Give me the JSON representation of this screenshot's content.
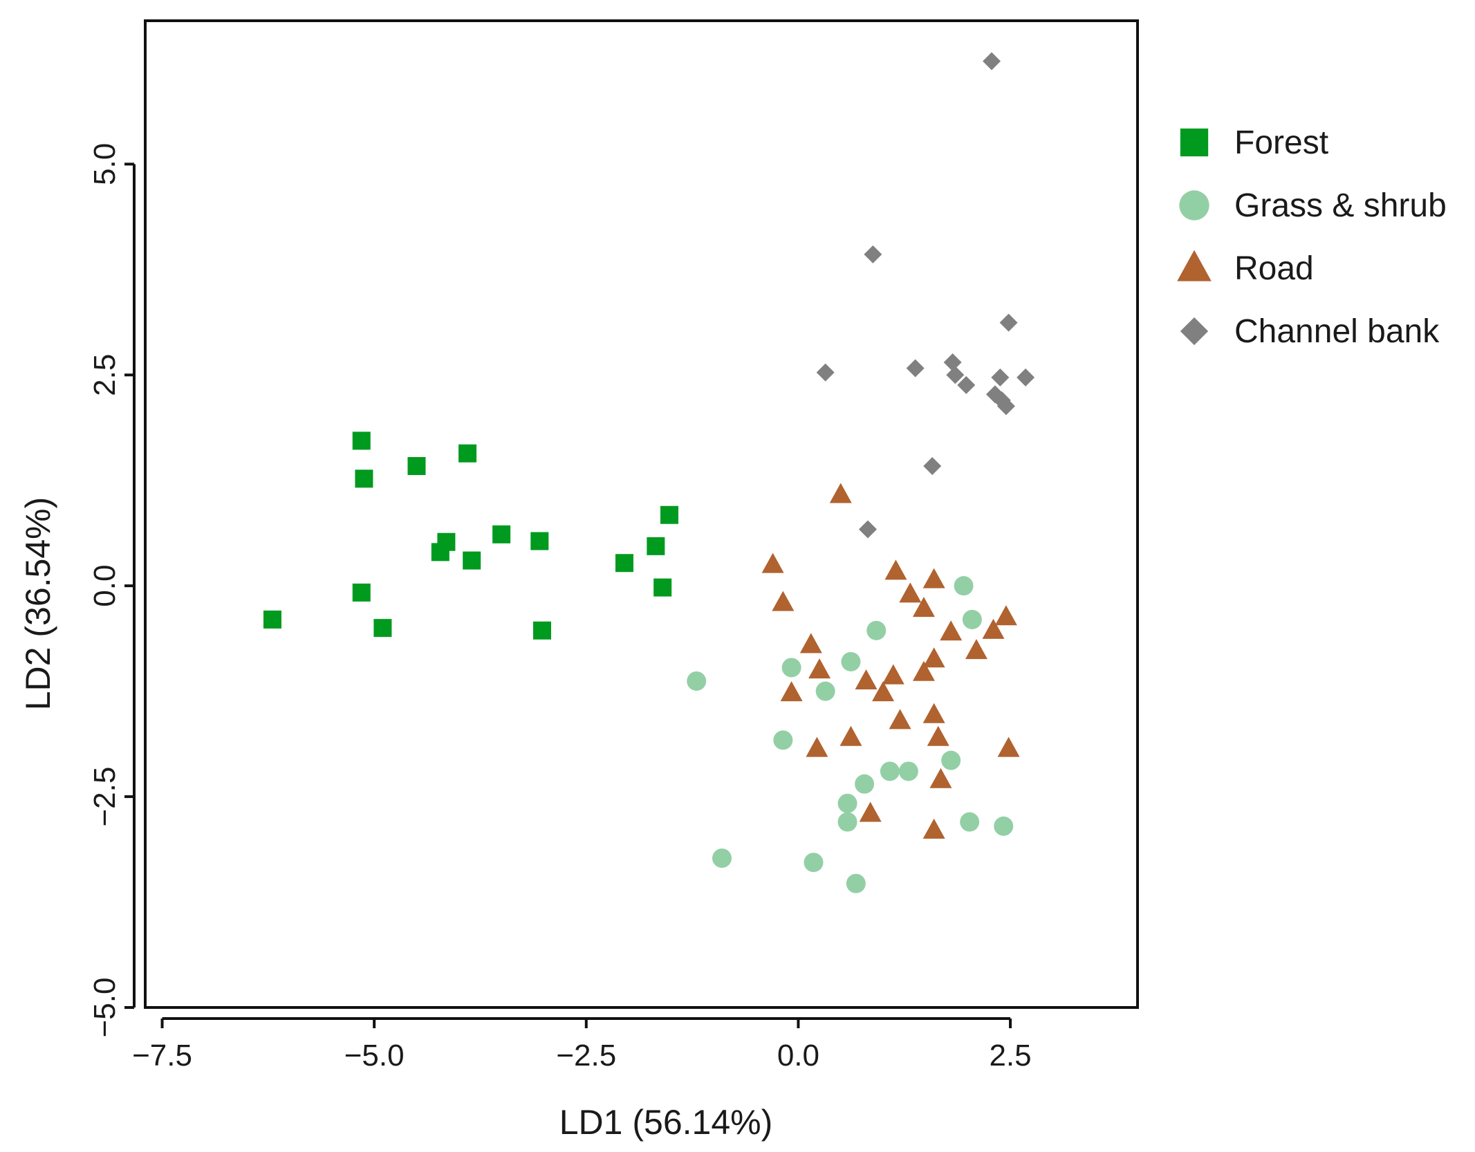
{
  "chart_data": {
    "type": "scatter",
    "title": "",
    "xlabel": "LD1 (56.14%)",
    "ylabel": "LD2 (36.54%)",
    "xlim": [
      -7.7,
      4.0
    ],
    "ylim": [
      -5.0,
      6.7
    ],
    "xticks": [
      -7.5,
      -5.0,
      -2.5,
      0.0,
      2.5
    ],
    "xtick_labels": [
      "−7.5",
      "−5.0",
      "−2.5",
      "0.0",
      "2.5"
    ],
    "yticks": [
      -5.0,
      -2.5,
      0.0,
      2.5,
      5.0
    ],
    "ytick_labels": [
      "−5.0",
      "−2.5",
      "0.0",
      "2.5",
      "5.0"
    ],
    "grid": false,
    "legend_position": "outside-right",
    "series": [
      {
        "name": "Forest",
        "marker": "square",
        "color": "#009a1f",
        "points": [
          [
            -6.2,
            -0.4
          ],
          [
            -5.15,
            1.72
          ],
          [
            -5.12,
            1.27
          ],
          [
            -5.15,
            -0.08
          ],
          [
            -4.9,
            -0.5
          ],
          [
            -4.5,
            1.42
          ],
          [
            -4.22,
            0.4
          ],
          [
            -4.15,
            0.52
          ],
          [
            -3.9,
            1.57
          ],
          [
            -3.85,
            0.3
          ],
          [
            -3.5,
            0.61
          ],
          [
            -3.05,
            0.53
          ],
          [
            -3.02,
            -0.53
          ],
          [
            -2.05,
            0.27
          ],
          [
            -1.68,
            0.47
          ],
          [
            -1.6,
            -0.02
          ],
          [
            -1.52,
            0.84
          ]
        ]
      },
      {
        "name": "Grass & shrub",
        "marker": "circle",
        "color": "#93cfa5",
        "points": [
          [
            -1.2,
            -1.13
          ],
          [
            -0.9,
            -3.23
          ],
          [
            -0.18,
            -1.83
          ],
          [
            -0.08,
            -0.97
          ],
          [
            0.18,
            -3.28
          ],
          [
            0.32,
            -1.25
          ],
          [
            0.58,
            -2.58
          ],
          [
            0.58,
            -2.8
          ],
          [
            0.62,
            -0.9
          ],
          [
            0.68,
            -3.53
          ],
          [
            0.78,
            -2.35
          ],
          [
            0.92,
            -0.53
          ],
          [
            1.08,
            -2.2
          ],
          [
            1.3,
            -2.2
          ],
          [
            1.8,
            -2.07
          ],
          [
            1.95,
            0.0
          ],
          [
            2.02,
            -2.8
          ],
          [
            2.05,
            -0.4
          ],
          [
            2.42,
            -2.85
          ]
        ]
      },
      {
        "name": "Road",
        "marker": "triangle",
        "color": "#b0622f",
        "points": [
          [
            -0.3,
            0.25
          ],
          [
            -0.18,
            -0.2
          ],
          [
            -0.08,
            -1.27
          ],
          [
            0.15,
            -0.7
          ],
          [
            0.22,
            -1.93
          ],
          [
            0.25,
            -1.0
          ],
          [
            0.5,
            1.08
          ],
          [
            0.62,
            -1.8
          ],
          [
            0.8,
            -1.13
          ],
          [
            0.85,
            -2.7
          ],
          [
            1.0,
            -1.27
          ],
          [
            1.12,
            -1.07
          ],
          [
            1.15,
            0.17
          ],
          [
            1.2,
            -1.6
          ],
          [
            1.32,
            -0.1
          ],
          [
            1.48,
            -0.27
          ],
          [
            1.48,
            -1.03
          ],
          [
            1.6,
            0.07
          ],
          [
            1.6,
            -0.87
          ],
          [
            1.6,
            -1.53
          ],
          [
            1.65,
            -1.8
          ],
          [
            1.68,
            -2.3
          ],
          [
            1.6,
            -2.9
          ],
          [
            1.8,
            -0.55
          ],
          [
            2.1,
            -0.77
          ],
          [
            2.3,
            -0.53
          ],
          [
            2.45,
            -0.37
          ],
          [
            2.48,
            -1.93
          ]
        ]
      },
      {
        "name": "Channel bank",
        "marker": "diamond",
        "color": "#808080",
        "points": [
          [
            0.32,
            2.53
          ],
          [
            0.82,
            0.67
          ],
          [
            0.88,
            3.93
          ],
          [
            1.38,
            2.58
          ],
          [
            1.58,
            1.42
          ],
          [
            1.82,
            2.65
          ],
          [
            1.85,
            2.5
          ],
          [
            1.98,
            2.38
          ],
          [
            2.28,
            6.22
          ],
          [
            2.32,
            2.27
          ],
          [
            2.38,
            2.47
          ],
          [
            2.4,
            2.2
          ],
          [
            2.45,
            2.13
          ],
          [
            2.48,
            3.12
          ],
          [
            2.68,
            2.47
          ]
        ]
      }
    ]
  }
}
